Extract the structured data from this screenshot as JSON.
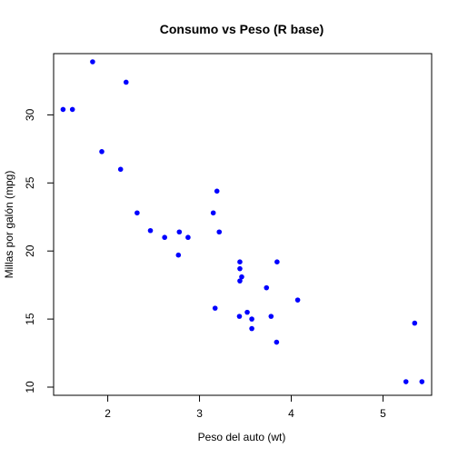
{
  "chart_data": {
    "type": "scatter",
    "title": "Consumo vs Peso (R base)",
    "xlabel": "Peso del auto (wt)",
    "ylabel": "Millas por galón (mpg)",
    "xlim": [
      1.41,
      5.53
    ],
    "ylim": [
      9.4,
      34.5
    ],
    "xticks": [
      2,
      3,
      4,
      5
    ],
    "yticks": [
      10,
      15,
      20,
      25,
      30
    ],
    "grid": false,
    "legend": "none",
    "point_color": "#0000FF",
    "series": [
      {
        "x": [
          2.62,
          2.875,
          2.32,
          3.215,
          3.44,
          3.46,
          3.57,
          3.19,
          3.15,
          3.44,
          3.44,
          4.07,
          3.73,
          3.78,
          5.25,
          5.424,
          5.345,
          2.2,
          1.615,
          1.835,
          2.465,
          3.52,
          3.435,
          3.84,
          3.845,
          1.935,
          2.14,
          1.513,
          3.17,
          2.77,
          3.57,
          2.78
        ],
        "y": [
          21.0,
          21.0,
          22.8,
          21.4,
          18.7,
          18.1,
          14.3,
          24.4,
          22.8,
          19.2,
          17.8,
          16.4,
          17.3,
          15.2,
          10.4,
          10.4,
          14.7,
          32.4,
          30.4,
          33.9,
          21.5,
          15.5,
          15.2,
          13.3,
          19.2,
          27.3,
          26.0,
          30.4,
          15.8,
          19.7,
          15.0,
          21.4
        ]
      }
    ]
  }
}
